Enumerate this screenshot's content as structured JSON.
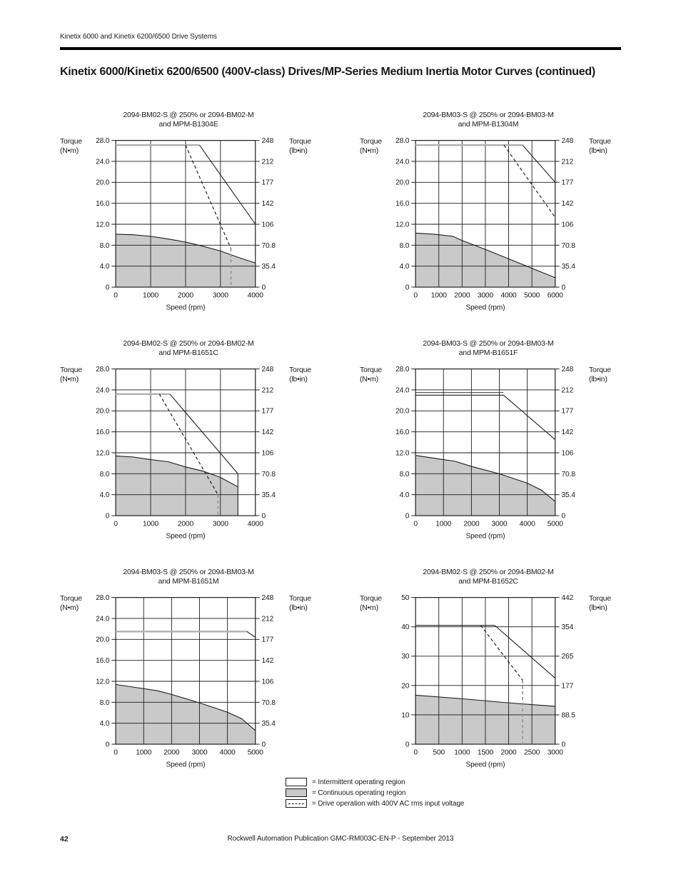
{
  "page": {
    "header": "Kinetix 6000 and Kinetix 6200/6500 Drive Systems",
    "title": "Kinetix 6000/Kinetix 6200/6500 (400V-class) Drives/MP-Series Medium Inertia Motor Curves (continued)",
    "page_number": "42",
    "footer": "Rockwell Automation Publication GMC-RM003C-EN-P - September 2013"
  },
  "colors": {
    "line": "#1a1a1a",
    "continuous_fill": "#c9c9c9",
    "gray_line": "#b0b0b0",
    "dashed_vert": "#999999"
  },
  "legend": [
    {
      "swatch": "intermittent",
      "label": "= Intermittent operating region"
    },
    {
      "swatch": "continuous",
      "label": "= Continuous operating region"
    },
    {
      "swatch": "dashed",
      "label": "= Drive operation with 400V AC rms input voltage"
    }
  ],
  "chart_data": [
    {
      "type": "area",
      "title_line1": "2094-BM02-S @ 250% or 2094-BM02-M",
      "title_line2": "and MPM-B1304E",
      "ylabel_left": [
        "Torque",
        "(N•m)"
      ],
      "ylabel_right": [
        "Torque",
        "(lb•in)"
      ],
      "xlabel": "Speed (rpm)",
      "x_max": 4000,
      "x_ticks": [
        0,
        1000,
        2000,
        3000,
        4000
      ],
      "y_max": 28,
      "y_ticks_left": [
        "28.0",
        "24.0",
        "20.0",
        "16.0",
        "12.0",
        "8.0",
        "4.0",
        "0"
      ],
      "y_ticks_right": [
        "248",
        "212",
        "177",
        "142",
        "106",
        "70.8",
        "35.4",
        "0"
      ],
      "series": {
        "intermittent": [
          [
            0,
            27.1
          ],
          [
            2400,
            27.1
          ],
          [
            4000,
            12.0
          ]
        ],
        "gray_flat_end": 2400,
        "dashed": [
          [
            2000,
            27.1
          ],
          [
            3300,
            7.4
          ]
        ],
        "dashed_vertical": {
          "x": 3300,
          "y_top": 7.4
        },
        "continuous": [
          [
            0,
            10.1
          ],
          [
            500,
            10.0
          ],
          [
            1000,
            9.7
          ],
          [
            1500,
            9.2
          ],
          [
            2000,
            8.6
          ],
          [
            2500,
            7.8
          ],
          [
            3000,
            6.9
          ],
          [
            3500,
            5.7
          ],
          [
            4000,
            4.6
          ]
        ]
      }
    },
    {
      "type": "area",
      "title_line1": "2094-BM03-S @ 250% or 2094-BM03-M",
      "title_line2": "and MPM-B1304M",
      "ylabel_left": [
        "Torque",
        "(N•m)"
      ],
      "ylabel_right": [
        "Torque",
        "(lb•in)"
      ],
      "xlabel": "Speed (rpm)",
      "x_max": 6000,
      "x_ticks": [
        0,
        1000,
        2000,
        3000,
        4000,
        5000,
        6000
      ],
      "y_max": 28,
      "y_ticks_left": [
        "28.0",
        "24.0",
        "20.0",
        "16.0",
        "12.0",
        "8.0",
        "4.0",
        "0"
      ],
      "y_ticks_right": [
        "248",
        "212",
        "177",
        "142",
        "106",
        "70.8",
        "35.4",
        "0"
      ],
      "series": {
        "intermittent": [
          [
            0,
            27.1
          ],
          [
            4600,
            27.1
          ],
          [
            6000,
            20.0
          ]
        ],
        "gray_flat_end": 4600,
        "dashed": [
          [
            3800,
            27.1
          ],
          [
            6000,
            13.3
          ]
        ],
        "continuous": [
          [
            0,
            10.3
          ],
          [
            800,
            10.1
          ],
          [
            1600,
            9.7
          ],
          [
            2000,
            8.9
          ],
          [
            3000,
            7.2
          ],
          [
            4000,
            5.4
          ],
          [
            5000,
            3.6
          ],
          [
            6000,
            1.8
          ]
        ]
      }
    },
    {
      "type": "area",
      "title_line1": "2094-BM02-S @ 250% or 2094-BM02-M",
      "title_line2": "and MPM-B1651C",
      "ylabel_left": [
        "Torque",
        "(N•m)"
      ],
      "ylabel_right": [
        "Torque",
        "(lb•in)"
      ],
      "xlabel": "Speed (rpm)",
      "x_max": 4000,
      "x_ticks": [
        0,
        1000,
        2000,
        3000,
        4000
      ],
      "y_max": 28,
      "y_ticks_left": [
        "28.0",
        "24.0",
        "20.0",
        "16.0",
        "12.0",
        "8.0",
        "4.0",
        "0"
      ],
      "y_ticks_right": [
        "248",
        "212",
        "177",
        "142",
        "106",
        "70.8",
        "35.4",
        "0"
      ],
      "series": {
        "intermittent": [
          [
            0,
            23.2
          ],
          [
            1550,
            23.2
          ],
          [
            3500,
            8.0
          ],
          [
            3500,
            0
          ]
        ],
        "gray_flat_end": 1550,
        "dashed": [
          [
            1250,
            23.2
          ],
          [
            2930,
            4.0
          ]
        ],
        "dashed_vertical": {
          "x": 2930,
          "y_top": 4.0
        },
        "continuous": [
          [
            0,
            11.4
          ],
          [
            500,
            11.2
          ],
          [
            1000,
            10.7
          ],
          [
            1500,
            10.3
          ],
          [
            2000,
            9.3
          ],
          [
            2500,
            8.5
          ],
          [
            3000,
            7.3
          ],
          [
            3500,
            5.5
          ]
        ]
      }
    },
    {
      "type": "area",
      "title_line1": "2094-BM03-S @ 250% or 2094-BM03-M",
      "title_line2": "and MPM-B1651F",
      "ylabel_left": [
        "Torque",
        "(N•m)"
      ],
      "ylabel_right": [
        "Torque",
        "(lb•in)"
      ],
      "xlabel": "Speed (rpm)",
      "x_max": 5000,
      "x_ticks": [
        0,
        1000,
        2000,
        3000,
        4000,
        5000
      ],
      "y_max": 28,
      "y_ticks_left": [
        "28.0",
        "24.0",
        "20.0",
        "16.0",
        "12.0",
        "8.0",
        "4.0",
        "0"
      ],
      "y_ticks_right": [
        "248",
        "212",
        "177",
        "142",
        "106",
        "70.8",
        "35.4",
        "0"
      ],
      "series": {
        "intermittent": [
          [
            0,
            23.0
          ],
          [
            3150,
            23.0
          ],
          [
            5000,
            14.5
          ]
        ],
        "upper_line": {
          "y": 23.5,
          "x_end": 3150
        },
        "continuous": [
          [
            0,
            11.5
          ],
          [
            1000,
            10.7
          ],
          [
            1400,
            10.4
          ],
          [
            2000,
            9.4
          ],
          [
            3000,
            8.0
          ],
          [
            4000,
            6.2
          ],
          [
            4500,
            4.9
          ],
          [
            5000,
            2.7
          ]
        ]
      }
    },
    {
      "type": "area",
      "title_line1": "2094-BM03-S @ 250% or 2094-BM03-M",
      "title_line2": "and MPM-B1651M",
      "ylabel_left": [
        "Torque",
        "(N•m)"
      ],
      "ylabel_right": [
        "Torque",
        "(lb•in)"
      ],
      "xlabel": "Speed (rpm)",
      "x_max": 5000,
      "x_ticks": [
        0,
        1000,
        2000,
        3000,
        4000,
        5000
      ],
      "y_max": 28,
      "y_ticks_left": [
        "28.0",
        "24.0",
        "20.0",
        "16.0",
        "12.0",
        "8.0",
        "4.0",
        "0"
      ],
      "y_ticks_right": [
        "248",
        "212",
        "177",
        "142",
        "106",
        "70.8",
        "35.4",
        "0"
      ],
      "series": {
        "intermittent": [
          [
            0,
            21.5
          ],
          [
            4700,
            21.5
          ],
          [
            5000,
            20.4
          ]
        ],
        "gray_flat_end": 4700,
        "continuous": [
          [
            0,
            11.4
          ],
          [
            1000,
            10.6
          ],
          [
            1500,
            10.2
          ],
          [
            2000,
            9.5
          ],
          [
            3000,
            7.9
          ],
          [
            4000,
            6.1
          ],
          [
            4500,
            4.9
          ],
          [
            5000,
            2.6
          ]
        ]
      }
    },
    {
      "type": "area",
      "title_line1": "2094-BM02-S @ 250% or 2094-BM02-M",
      "title_line2": "and MPM-B1652C",
      "ylabel_left": [
        "Torque",
        "(N•m)"
      ],
      "ylabel_right": [
        "Torque",
        "(lb•in)"
      ],
      "xlabel": "Speed (rpm)",
      "x_max": 3000,
      "x_ticks": [
        0,
        500,
        1000,
        1500,
        2000,
        2500,
        3000
      ],
      "y_max": 50,
      "y_ticks_left": [
        "50",
        "40",
        "30",
        "20",
        "10",
        "0"
      ],
      "y_ticks_right": [
        "442",
        "354",
        "265",
        "177",
        "88.5",
        "0"
      ],
      "series": {
        "intermittent": [
          [
            0,
            40.5
          ],
          [
            1700,
            40.5
          ],
          [
            3000,
            22.5
          ]
        ],
        "dashed": [
          [
            1400,
            40.5
          ],
          [
            2300,
            21.8
          ]
        ],
        "dashed_vertical": {
          "x": 2300,
          "y_top": 21.8
        },
        "continuous": [
          [
            0,
            16.7
          ],
          [
            1000,
            15.5
          ],
          [
            2000,
            14.1
          ],
          [
            3000,
            12.9
          ]
        ]
      }
    }
  ]
}
